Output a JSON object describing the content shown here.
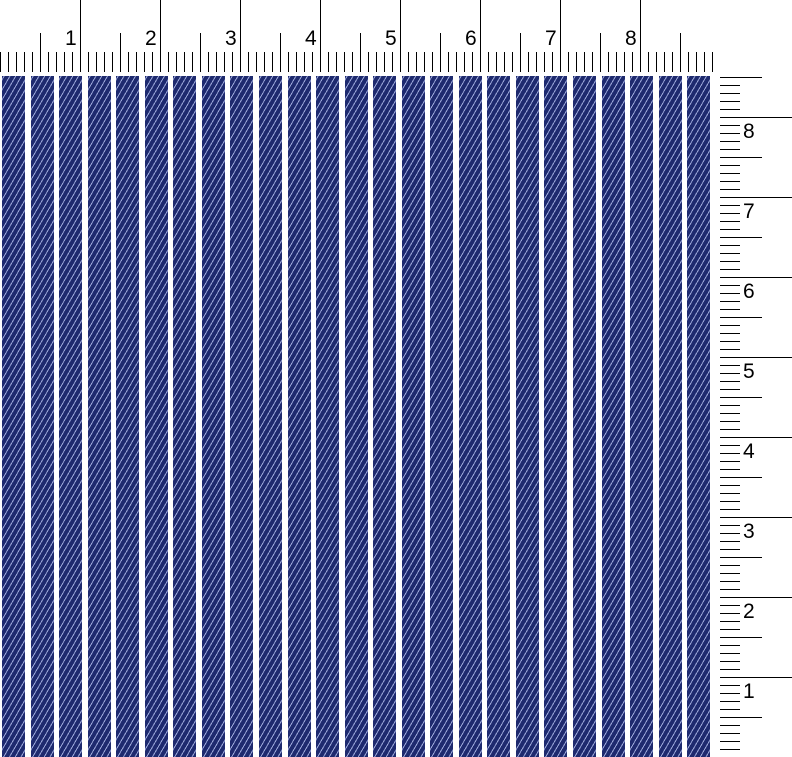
{
  "top_ruler": {
    "labels": [
      "1",
      "2",
      "3",
      "4",
      "5",
      "6",
      "7",
      "8"
    ]
  },
  "side_ruler": {
    "labels": [
      "8",
      "7",
      "6",
      "5",
      "4",
      "3",
      "2",
      "1"
    ]
  },
  "fabric": {
    "pattern": "navy twill with white vertical pinstripes",
    "colors": {
      "navy": "#1e2a6e",
      "stripe": "#ffffff"
    }
  }
}
